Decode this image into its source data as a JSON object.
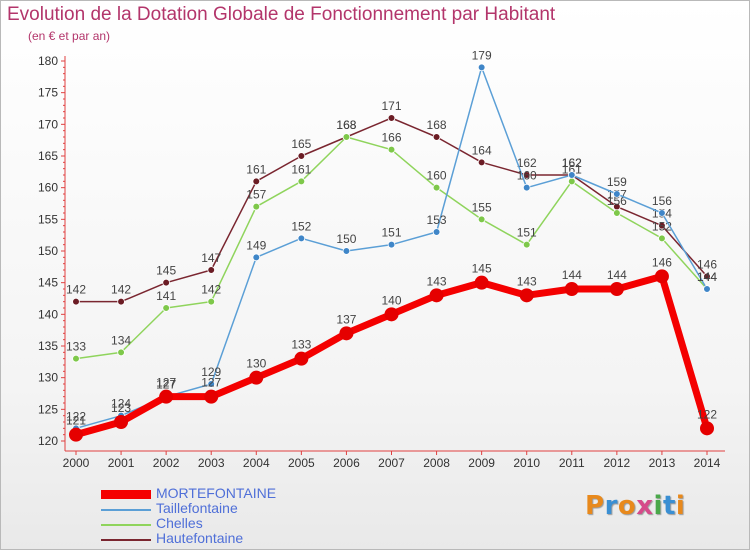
{
  "title": "Evolution de la Dotation Globale de Fonctionnement par Habitant",
  "subtitle": "(en € et par an)",
  "logo": {
    "text": "Proxiti",
    "colors": [
      "#e8891c",
      "#3a8fd3",
      "#e8891c",
      "#d64a8a",
      "#4aa84a",
      "#3a8fd3",
      "#e8891c"
    ]
  },
  "chart_data": {
    "type": "line",
    "x": [
      2000,
      2001,
      2002,
      2003,
      2004,
      2005,
      2006,
      2007,
      2008,
      2009,
      2010,
      2011,
      2012,
      2013,
      2014
    ],
    "ylim": [
      120,
      180
    ],
    "yticks": [
      120,
      125,
      130,
      135,
      140,
      145,
      150,
      155,
      160,
      165,
      170,
      175,
      180
    ],
    "grid": false,
    "xlabel": "",
    "ylabel": "",
    "series": [
      {
        "name": "Hautefontaine",
        "color": "#7a2630",
        "marker": "#6b1c24",
        "values": [
          142,
          142,
          145,
          147,
          161,
          165,
          168,
          171,
          168,
          164,
          162,
          162,
          157,
          154,
          146
        ]
      },
      {
        "name": "Chelles",
        "color": "#8fd45c",
        "marker": "#7ec84a",
        "values": [
          133,
          134,
          141,
          142,
          157,
          161,
          168,
          166,
          160,
          155,
          151,
          161,
          156,
          152,
          144
        ]
      },
      {
        "name": "Taillefontaine",
        "color": "#5b9fd6",
        "marker": "#3f86c8",
        "values": [
          122,
          124,
          127,
          129,
          149,
          152,
          150,
          151,
          153,
          179,
          160,
          162,
          159,
          156,
          144
        ]
      },
      {
        "name": "MORTEFONTAINE",
        "color": "#f40000",
        "marker": "#e50000",
        "bold": true,
        "values": [
          121,
          123,
          127,
          127,
          130,
          133,
          137,
          140,
          143,
          145,
          143,
          144,
          144,
          146,
          122
        ]
      }
    ],
    "legend_order": [
      "MORTEFONTAINE",
      "Taillefontaine",
      "Chelles",
      "Hautefontaine"
    ],
    "legend_position": "bottom-left"
  }
}
